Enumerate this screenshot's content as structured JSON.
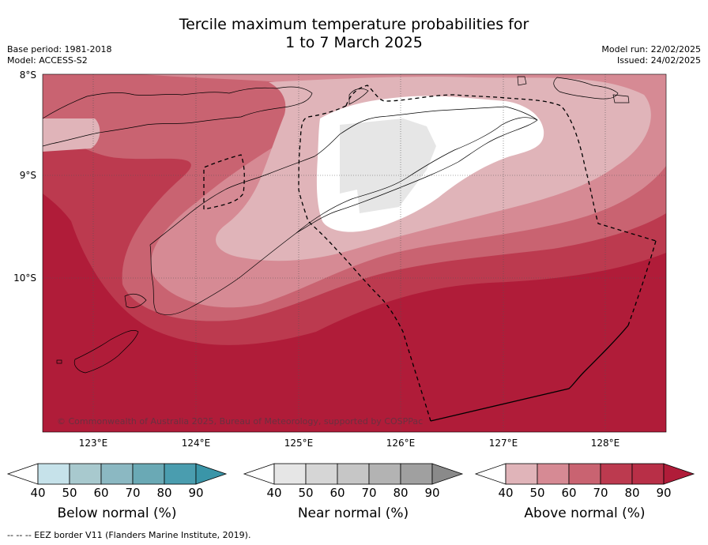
{
  "title": {
    "line1": "Tercile maximum temperature probabilities for",
    "line2": "1 to 7 March 2025"
  },
  "meta": {
    "base_period": "Base period: 1981-2018",
    "model": "Model: ACCESS-S2",
    "model_run": "Model run: 22/02/2025",
    "issued": "Issued: 24/02/2025"
  },
  "axes": {
    "lat_labels": [
      "8°S",
      "9°S",
      "10°S"
    ],
    "lon_labels": [
      "123°E",
      "124°E",
      "125°E",
      "126°E",
      "127°E",
      "128°E"
    ]
  },
  "map": {
    "region": "Timor / Lesser Sunda Islands",
    "credit": "© Commonwealth of Australia 2025, Bureau of Meteorology, supported by COSPPac",
    "category_shown": "Above normal (%)",
    "fill_colors": {
      "above_90": "#b01c39",
      "above_80": "#bc3a4f",
      "above_70": "#c96371",
      "above_60": "#d68a94",
      "above_50": "#e0b4b9",
      "near_50": "#e6e6e6",
      "none": "#ffffff"
    },
    "eez_line_style": "dashed"
  },
  "colorbars": [
    {
      "label": "Below normal (%)",
      "ticks": [
        "40",
        "50",
        "60",
        "70",
        "80",
        "90"
      ],
      "colors": [
        "#c6e2ea",
        "#a8c9ce",
        "#8bb8c2",
        "#6aa9b5",
        "#4a9daf",
        "#3a95a8"
      ]
    },
    {
      "label": "Near normal (%)",
      "ticks": [
        "40",
        "50",
        "60",
        "70",
        "80",
        "90"
      ],
      "colors": [
        "#e6e6e6",
        "#d6d6d6",
        "#c6c6c6",
        "#b3b3b3",
        "#a0a0a0",
        "#8a8a8a"
      ]
    },
    {
      "label": "Above normal (%)",
      "ticks": [
        "40",
        "50",
        "60",
        "70",
        "80",
        "90"
      ],
      "colors": [
        "#e0b4b9",
        "#d68a94",
        "#c96371",
        "#bc3a4f",
        "#b82f47",
        "#b01c39"
      ]
    }
  ],
  "footer": "--  --  -- EEZ border V11 (Flanders Marine Institute, 2019)."
}
